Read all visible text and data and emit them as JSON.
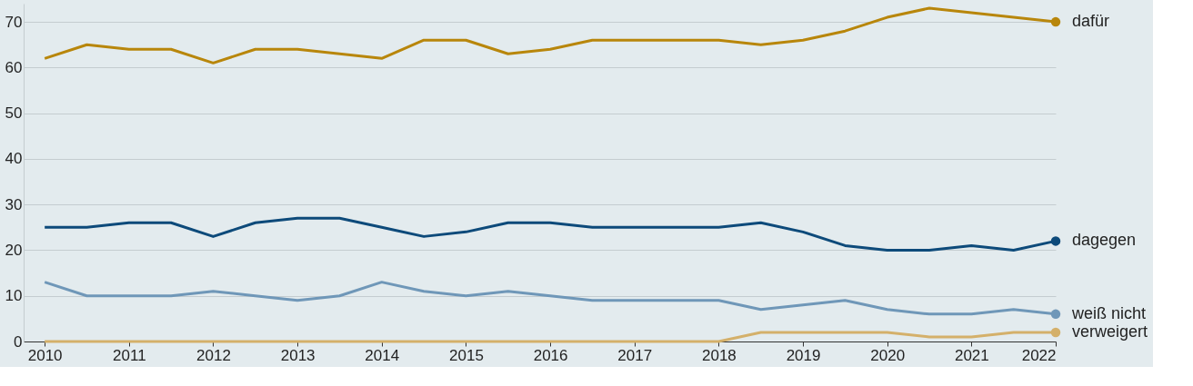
{
  "chart_data": {
    "type": "line",
    "x": [
      2010,
      2010.5,
      2011,
      2011.5,
      2012,
      2012.5,
      2013,
      2013.5,
      2014,
      2014.5,
      2015,
      2015.5,
      2016,
      2016.5,
      2017,
      2017.5,
      2018,
      2018.5,
      2019,
      2019.5,
      2020,
      2020.5,
      2021,
      2021.5,
      2022
    ],
    "series": [
      {
        "name": "dafür",
        "color": "#b8860b",
        "values": [
          62,
          65,
          64,
          64,
          61,
          64,
          64,
          63,
          62,
          66,
          66,
          63,
          64,
          66,
          66,
          66,
          66,
          65,
          66,
          68,
          71,
          73,
          72,
          71,
          70
        ]
      },
      {
        "name": "dagegen",
        "color": "#0d4a7a",
        "values": [
          25,
          25,
          26,
          26,
          23,
          26,
          27,
          27,
          25,
          23,
          24,
          26,
          26,
          25,
          25,
          25,
          25,
          26,
          24,
          21,
          20,
          20,
          21,
          20,
          22
        ]
      },
      {
        "name": "weiß nicht",
        "color": "#6f97b8",
        "values": [
          13,
          10,
          10,
          10,
          11,
          10,
          9,
          10,
          13,
          11,
          10,
          11,
          10,
          9,
          9,
          9,
          9,
          7,
          8,
          9,
          7,
          6,
          6,
          7,
          6
        ]
      },
      {
        "name": "verweigert",
        "color": "#d4b06a",
        "values": [
          0,
          0,
          0,
          0,
          0,
          0,
          0,
          0,
          0,
          0,
          0,
          0,
          0,
          0,
          0,
          0,
          0,
          2,
          2,
          2,
          2,
          1,
          1,
          2,
          2
        ]
      }
    ],
    "xlim": [
      2009.75,
      2022
    ],
    "xticks": [
      2010,
      2011,
      2012,
      2013,
      2014,
      2015,
      2016,
      2017,
      2018,
      2019,
      2020,
      2021,
      2022
    ],
    "ylim": [
      0,
      74
    ],
    "yticks": [
      0,
      10,
      20,
      30,
      40,
      50,
      60,
      70
    ],
    "grid": "y",
    "legend": false,
    "line_style": "solid"
  }
}
